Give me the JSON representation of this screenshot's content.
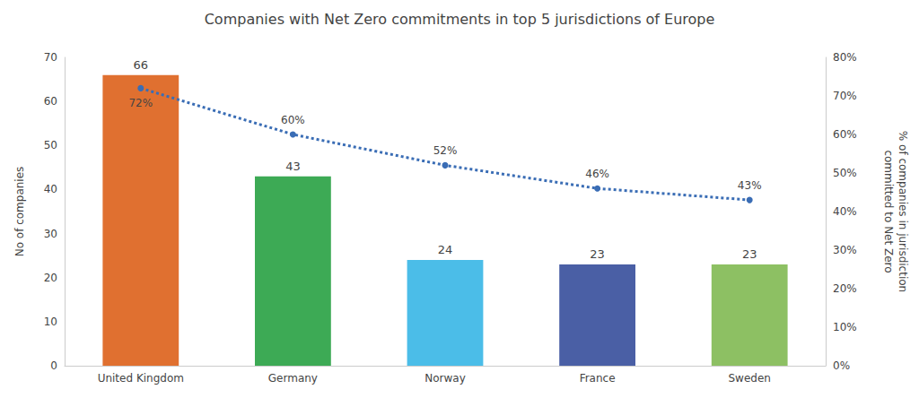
{
  "chart_data": {
    "type": "bar",
    "title": "Companies with Net Zero commitments in top 5 jurisdictions of Europe",
    "categories": [
      "United Kingdom",
      "Germany",
      "Norway",
      "France",
      "Sweden"
    ],
    "ylabel": "No of companies",
    "y2label": "% of companies in jurisdiction\ncommitted to Net Zero",
    "ylim": [
      0,
      70
    ],
    "yticks": [
      0,
      10,
      20,
      30,
      40,
      50,
      60,
      70
    ],
    "y2lim": [
      0,
      0.8
    ],
    "y2ticks": [
      {
        "value": 0.0,
        "label": "0%"
      },
      {
        "value": 0.1,
        "label": "10%"
      },
      {
        "value": 0.2,
        "label": "20%"
      },
      {
        "value": 0.3,
        "label": "30%"
      },
      {
        "value": 0.4,
        "label": "40%"
      },
      {
        "value": 0.5,
        "label": "50%"
      },
      {
        "value": 0.6,
        "label": "60%"
      },
      {
        "value": 0.7,
        "label": "70%"
      },
      {
        "value": 0.8,
        "label": "80%"
      }
    ],
    "grid": false,
    "series": [
      {
        "type": "bar",
        "colors": [
          "#E07030",
          "#3DAA55",
          "#4BBDE8",
          "#4A5FA5",
          "#8DC063"
        ],
        "values": [
          66,
          43,
          24,
          23,
          23
        ],
        "data_labels": true
      },
      {
        "type": "line",
        "axis": "y2",
        "color": "#3A6DB5",
        "line_style": "dotted",
        "marker": "circle",
        "values": [
          0.72,
          0.6,
          0.52,
          0.46,
          0.43
        ],
        "value_labels": [
          "72%",
          "60%",
          "52%",
          "46%",
          "43%"
        ],
        "data_labels": true
      }
    ]
  }
}
